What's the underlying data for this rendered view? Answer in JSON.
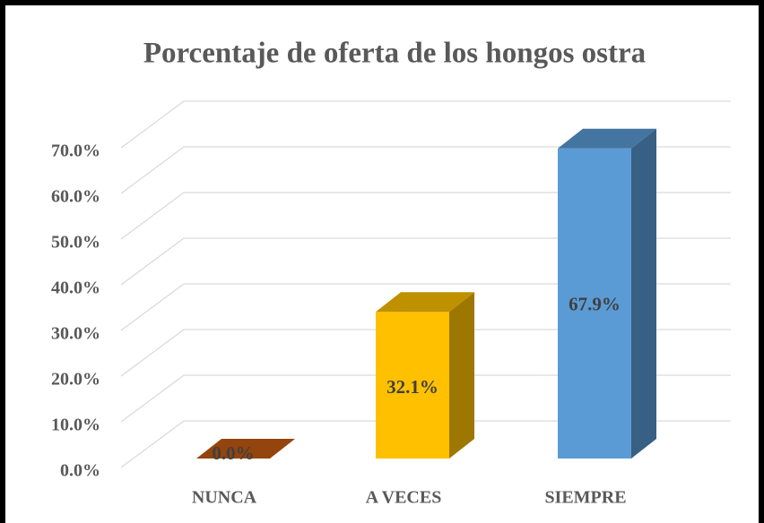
{
  "chart_data": {
    "type": "bar3d",
    "title": "Porcentaje de oferta de los hongos ostra",
    "categories": [
      "NUNCA",
      "A VECES",
      "SIEMPRE"
    ],
    "values": [
      0,
      32.1,
      67.9
    ],
    "value_labels": [
      "0.0%",
      "32.1%",
      "67.9%"
    ],
    "colors": [
      "#c55a11",
      "#ffc000",
      "#5b9bd5"
    ],
    "ylim": [
      0,
      70
    ],
    "yticks": [
      {
        "value": 0,
        "label": "0.0%"
      },
      {
        "value": 10,
        "label": "10.0%"
      },
      {
        "value": 20,
        "label": "20.0%"
      },
      {
        "value": 30,
        "label": "30.0%"
      },
      {
        "value": 40,
        "label": "40.0%"
      },
      {
        "value": 50,
        "label": "50.0%"
      },
      {
        "value": 60,
        "label": "60.0%"
      },
      {
        "value": 70,
        "label": "70.0%"
      }
    ],
    "grid": true
  }
}
